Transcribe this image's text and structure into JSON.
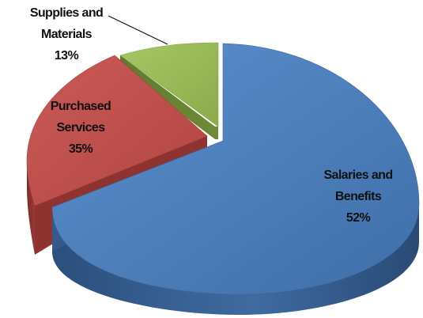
{
  "chart_data": {
    "type": "pie",
    "style": "3d-exploded",
    "title": "",
    "legend": "none",
    "slices": [
      {
        "name": "Salaries and Benefits",
        "label_lines": [
          "Salaries and",
          "Benefits"
        ],
        "value_label": "52%",
        "value": 52,
        "color": "#4f81bd"
      },
      {
        "name": "Purchased Services",
        "label_lines": [
          "Purchased",
          "Services"
        ],
        "value_label": "35%",
        "value": 35,
        "color": "#c0504d"
      },
      {
        "name": "Supplies and Materials",
        "label_lines": [
          "Supplies and",
          "Materials"
        ],
        "value_label": "13%",
        "value": 13,
        "color": "#9bbb59"
      }
    ]
  }
}
